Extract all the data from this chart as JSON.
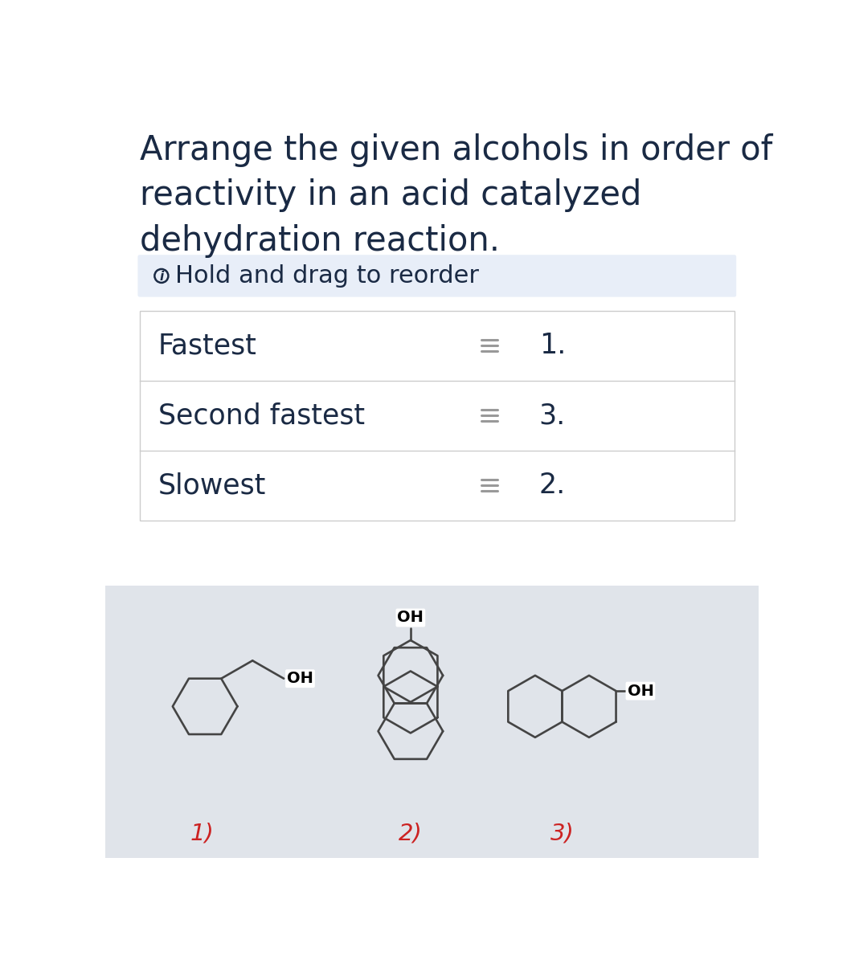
{
  "title": "Arrange the given alcohols in order of\nreactivity in an acid catalyzed\ndehydration reaction.",
  "title_color": "#1a2a44",
  "title_fontsize": 30,
  "info_text": "Hold and drag to reorder",
  "info_bg": "#e8eef8",
  "info_fontsize": 22,
  "table_rows": [
    {
      "label": "Fastest",
      "number": "1."
    },
    {
      "label": "Second fastest",
      "number": "3."
    },
    {
      "label": "Slowest",
      "number": "2."
    }
  ],
  "table_label_fontsize": 25,
  "table_number_fontsize": 25,
  "table_border_color": "#cccccc",
  "table_text_color": "#1a2a44",
  "bottom_bg": "#e0e4ea",
  "labels": [
    "1)",
    "2)",
    "3)"
  ],
  "label_color": "#cc2222",
  "label_fontsize": 21,
  "bg_color": "#ffffff",
  "line_color": "#444444",
  "oh_fontsize": 14,
  "lw": 1.9
}
